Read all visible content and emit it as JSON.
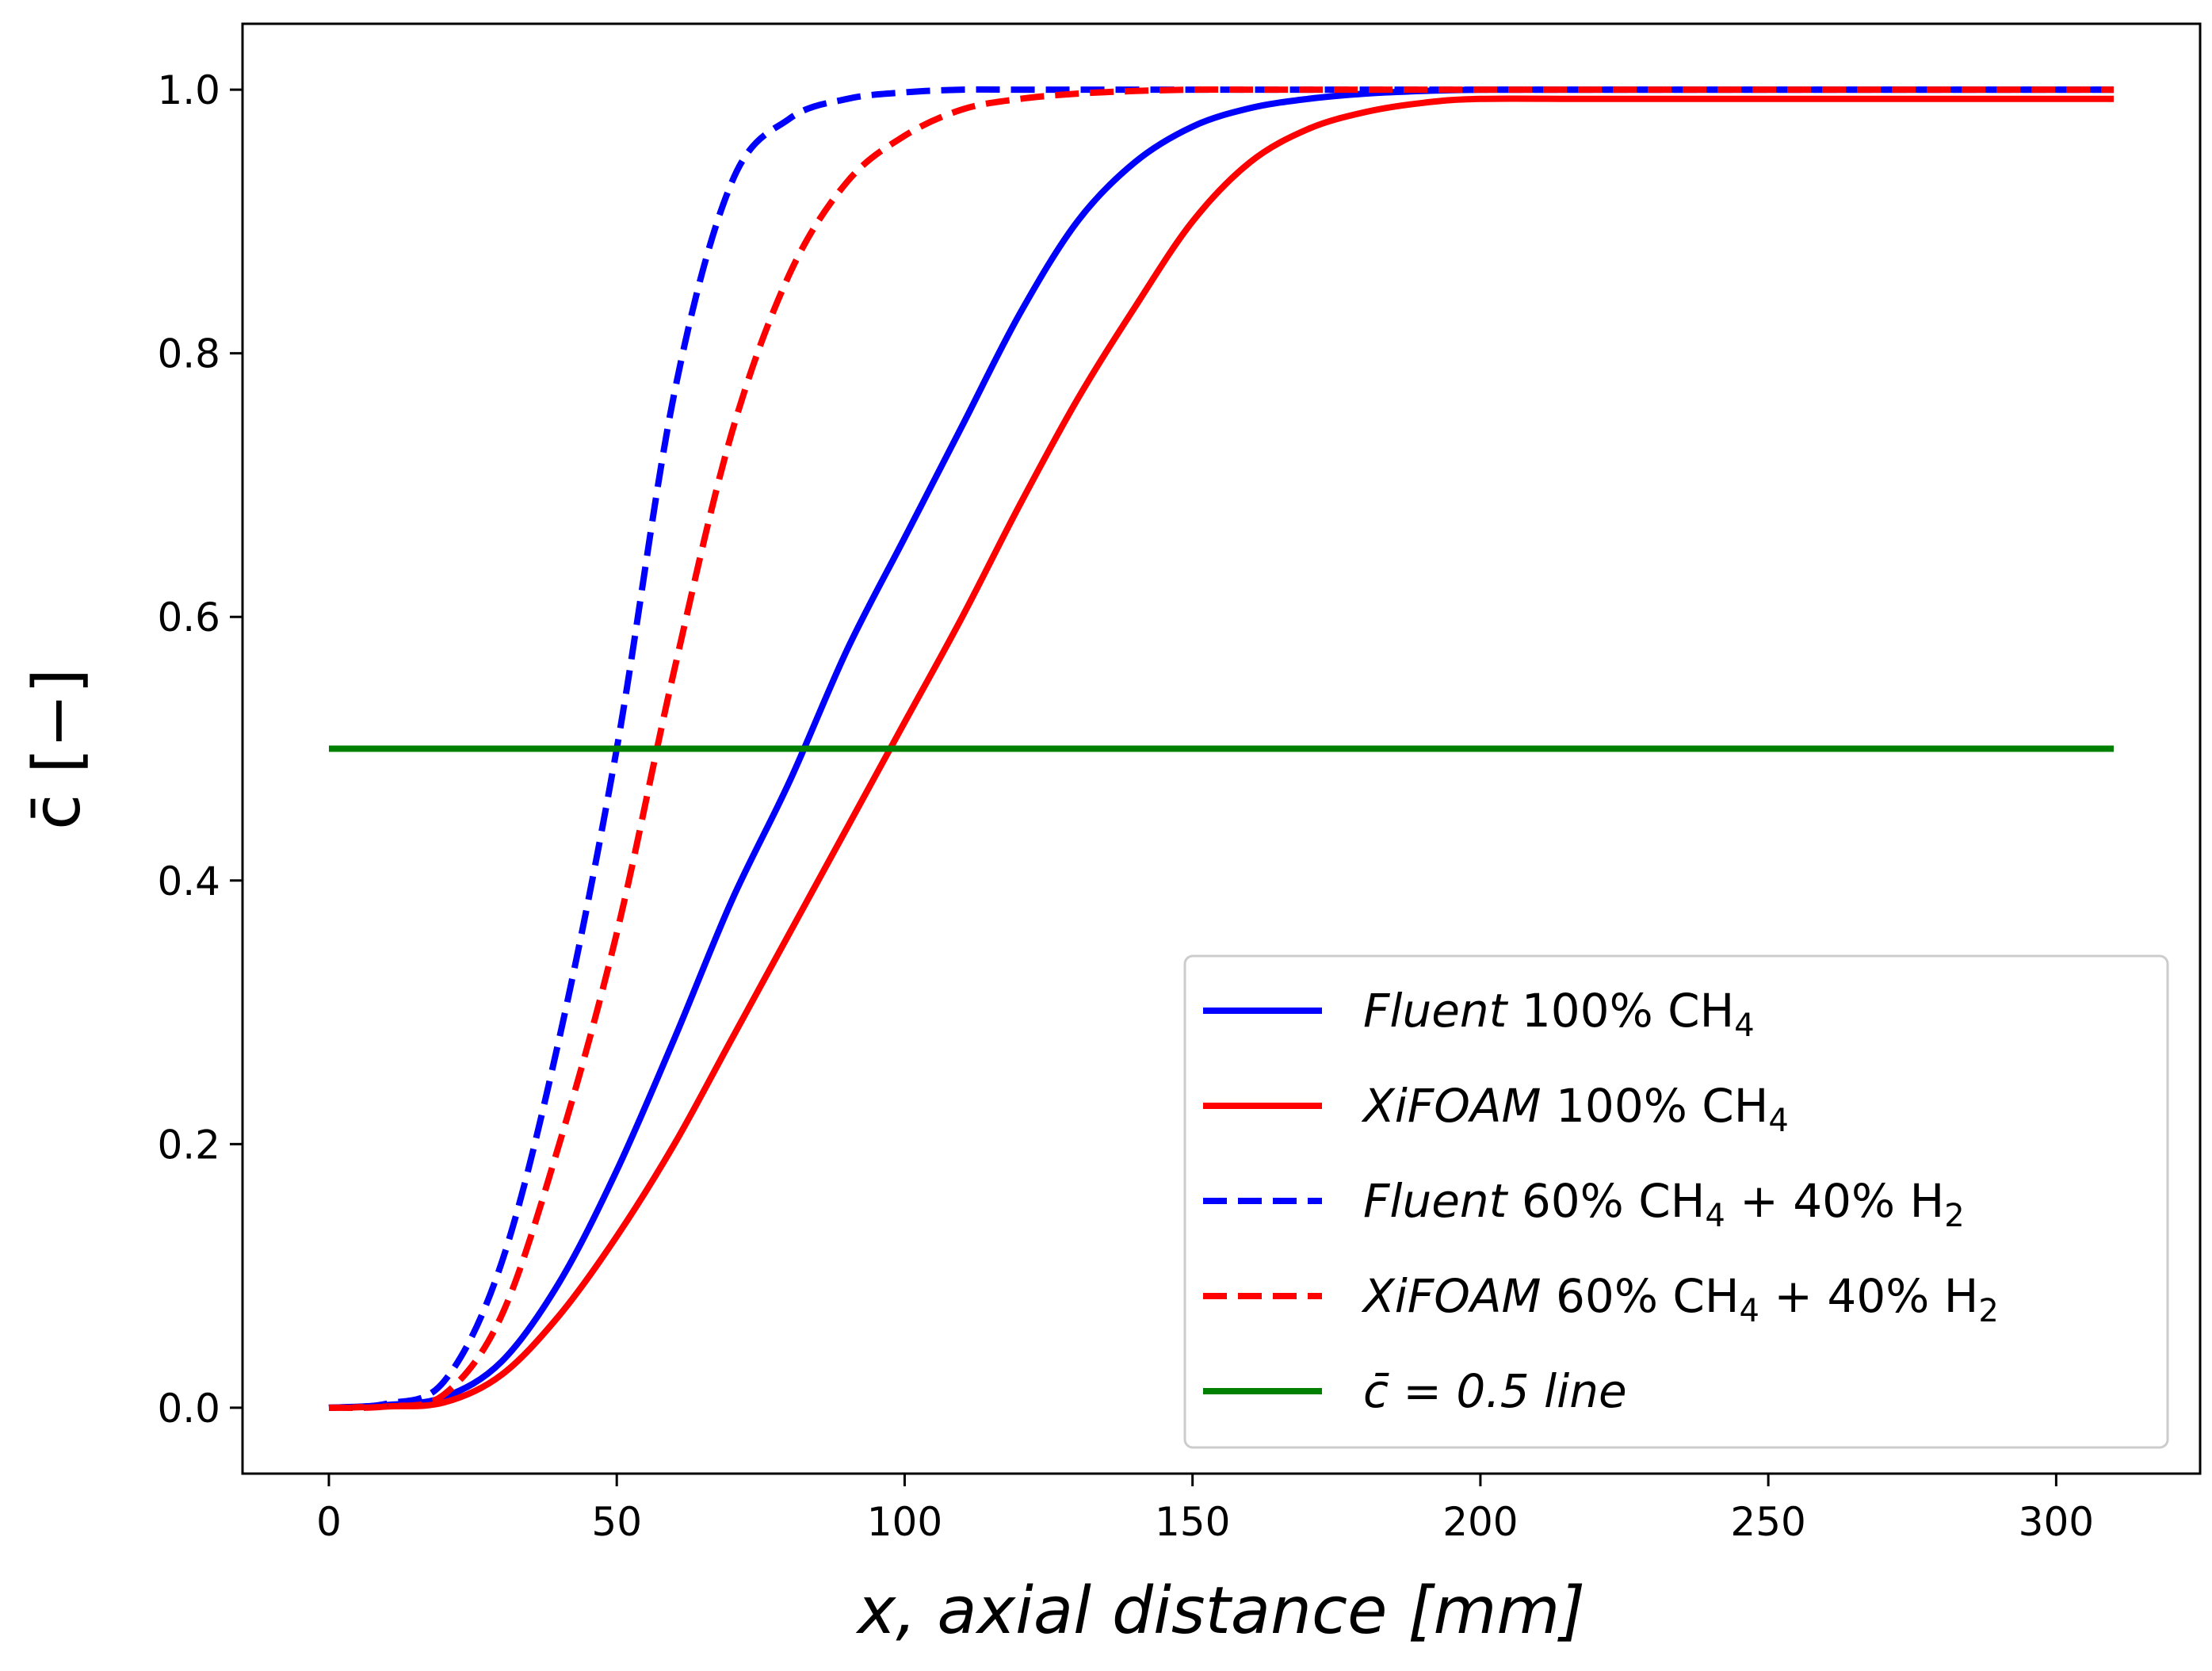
{
  "chart_data": {
    "type": "line",
    "title": "",
    "xlabel": "x,  axial distance [mm]",
    "ylabel": "c̄ [−]",
    "xlim": [
      -15,
      325
    ],
    "ylim": [
      -0.05,
      1.05
    ],
    "xticks": [
      0,
      50,
      100,
      150,
      200,
      250,
      300
    ],
    "yticks": [
      0.0,
      0.2,
      0.4,
      0.6,
      0.8,
      1.0
    ],
    "xtick_labels": [
      "0",
      "50",
      "100",
      "150",
      "200",
      "250",
      "300"
    ],
    "ytick_labels": [
      "0.0",
      "0.2",
      "0.4",
      "0.6",
      "0.8",
      "1.0"
    ],
    "grid": false,
    "legend_position": "lower-right",
    "x": [
      0,
      10,
      20,
      30,
      40,
      50,
      60,
      70,
      80,
      90,
      100,
      110,
      120,
      130,
      140,
      150,
      160,
      170,
      180,
      190,
      200,
      220,
      250,
      280,
      310
    ],
    "series": [
      {
        "name": "Fluent 100% CH4",
        "legend_label": {
          "italic": "Fluent",
          "rest": " 100% CH",
          "sub": "4",
          "rest2": ""
        },
        "color": "#0000ff",
        "style": "solid",
        "values": [
          0.0,
          0.002,
          0.008,
          0.035,
          0.095,
          0.18,
          0.28,
          0.385,
          0.475,
          0.575,
          0.66,
          0.745,
          0.83,
          0.9,
          0.945,
          0.972,
          0.986,
          0.993,
          0.997,
          0.999,
          1.0,
          1.0,
          1.0,
          1.0,
          1.0
        ]
      },
      {
        "name": "XiFOAM 100% CH4",
        "legend_label": {
          "italic": "XiFOAM",
          "rest": " 100% CH",
          "sub": "4",
          "rest2": ""
        },
        "color": "#ff0000",
        "style": "solid",
        "values": [
          0.0,
          0.001,
          0.004,
          0.025,
          0.07,
          0.13,
          0.2,
          0.28,
          0.36,
          0.44,
          0.52,
          0.6,
          0.685,
          0.765,
          0.835,
          0.9,
          0.945,
          0.97,
          0.983,
          0.99,
          0.993,
          0.993,
          0.993,
          0.993,
          0.993
        ]
      },
      {
        "name": "Fluent 60% CH4 + 40% H2",
        "legend_label": {
          "italic": "Fluent",
          "rest": " 60% CH",
          "sub": "4",
          "rest2": "  +  40% H",
          "sub2": "2"
        },
        "color": "#0000ff",
        "style": "dashed",
        "values": [
          0.0,
          0.003,
          0.02,
          0.11,
          0.28,
          0.5,
          0.77,
          0.93,
          0.978,
          0.993,
          0.998,
          1.0,
          1.0,
          1.0,
          1.0,
          1.0,
          1.0,
          1.0,
          1.0,
          1.0,
          1.0,
          1.0,
          1.0,
          1.0,
          1.0
        ]
      },
      {
        "name": "XiFOAM 60% CH4 + 40% H2",
        "legend_label": {
          "italic": "XiFOAM",
          "rest": " 60% CH",
          "sub": "4",
          "rest2": "  +  40% H",
          "sub2": "2"
        },
        "color": "#ff0000",
        "style": "dashed",
        "values": [
          0.0,
          0.001,
          0.01,
          0.07,
          0.2,
          0.36,
          0.56,
          0.74,
          0.86,
          0.93,
          0.965,
          0.985,
          0.993,
          0.997,
          0.999,
          1.0,
          1.0,
          1.0,
          1.0,
          1.0,
          1.0,
          1.0,
          1.0,
          1.0,
          1.0
        ]
      },
      {
        "name": "c̄ = 0.5 line",
        "legend_label": {
          "italic": "c̄ = 0.5  line",
          "rest": "",
          "sub": "",
          "rest2": ""
        },
        "color": "#008000",
        "style": "solid",
        "values": [
          0.5,
          0.5,
          0.5,
          0.5,
          0.5,
          0.5,
          0.5,
          0.5,
          0.5,
          0.5,
          0.5,
          0.5,
          0.5,
          0.5,
          0.5,
          0.5,
          0.5,
          0.5,
          0.5,
          0.5,
          0.5,
          0.5,
          0.5,
          0.5,
          0.5
        ]
      }
    ]
  }
}
